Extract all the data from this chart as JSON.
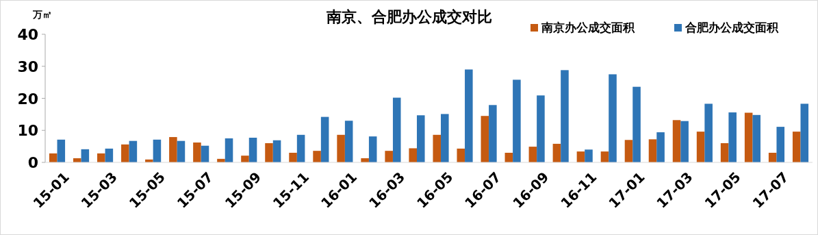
{
  "chart_data": {
    "type": "bar",
    "title": "南京、合肥办公成交对比",
    "ylabel": "万㎡",
    "categories": [
      "15-01",
      null,
      "15-03",
      null,
      "15-05",
      null,
      "15-07",
      null,
      "15-09",
      null,
      "15-11",
      null,
      "16-01",
      null,
      "16-03",
      null,
      "16-05",
      null,
      "16-07",
      null,
      "16-09",
      null,
      "16-11",
      null,
      "17-01",
      null,
      "17-03",
      null,
      "17-05",
      null,
      "17-07",
      null
    ],
    "series": [
      {
        "name": "南京办公成交面积",
        "color": "#c55a11",
        "values": [
          2.8,
          1.3,
          2.8,
          5.6,
          0.9,
          7.9,
          6.2,
          1.1,
          2.1,
          6.0,
          3.0,
          3.6,
          8.6,
          1.3,
          3.6,
          4.4,
          8.6,
          4.3,
          14.5,
          3.0,
          4.9,
          5.8,
          3.4,
          3.4,
          7.0,
          7.2,
          13.2,
          9.6,
          6.0,
          15.5,
          3.0,
          9.6
        ]
      },
      {
        "name": "合肥办公成交面积",
        "color": "#2e75b6",
        "values": [
          7.1,
          4.1,
          4.3,
          6.7,
          7.1,
          6.7,
          5.2,
          7.5,
          7.7,
          6.9,
          8.6,
          14.2,
          13.0,
          8.1,
          20.2,
          14.7,
          15.1,
          29.0,
          17.9,
          25.8,
          20.9,
          28.8,
          4.0,
          27.5,
          23.6,
          9.4,
          12.9,
          18.3,
          15.6,
          14.8,
          11.1,
          18.3
        ]
      }
    ],
    "ylim": [
      0,
      40
    ],
    "yticks": [
      0,
      10,
      20,
      30,
      40
    ],
    "grid": false,
    "legend": "top right"
  }
}
